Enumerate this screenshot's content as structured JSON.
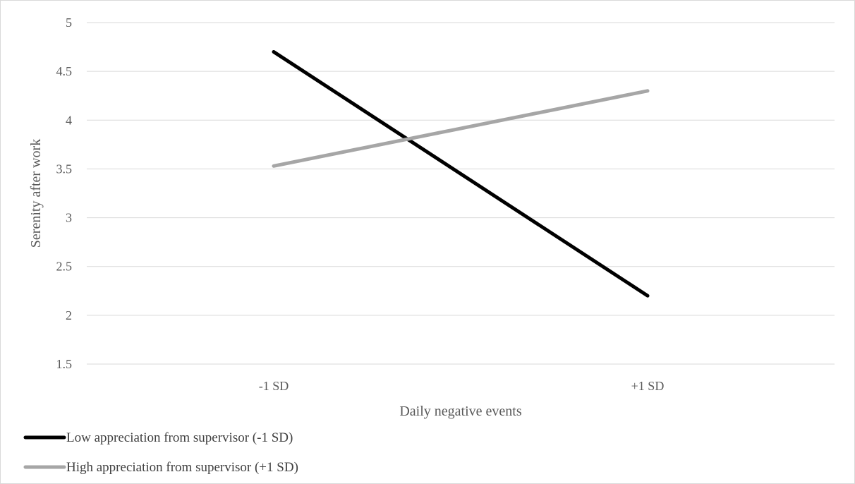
{
  "chart_data": {
    "type": "line",
    "title": "",
    "xlabel": "Daily negative events",
    "ylabel": "Serenity after work",
    "categories": [
      "-1 SD",
      "+1 SD"
    ],
    "ylim": [
      1.5,
      5
    ],
    "yticks": [
      "1.5",
      "2",
      "2.5",
      "3",
      "3.5",
      "4",
      "4.5",
      "5"
    ],
    "grid": true,
    "legend_position": "bottom-left",
    "series": [
      {
        "name": "Low appreciation from supervisor (-1 SD)",
        "values": [
          4.7,
          2.2
        ],
        "color": "#000000"
      },
      {
        "name": "High appreciation from supervisor (+1 SD)",
        "values": [
          3.53,
          4.3
        ],
        "color": "#a6a6a6"
      }
    ]
  }
}
